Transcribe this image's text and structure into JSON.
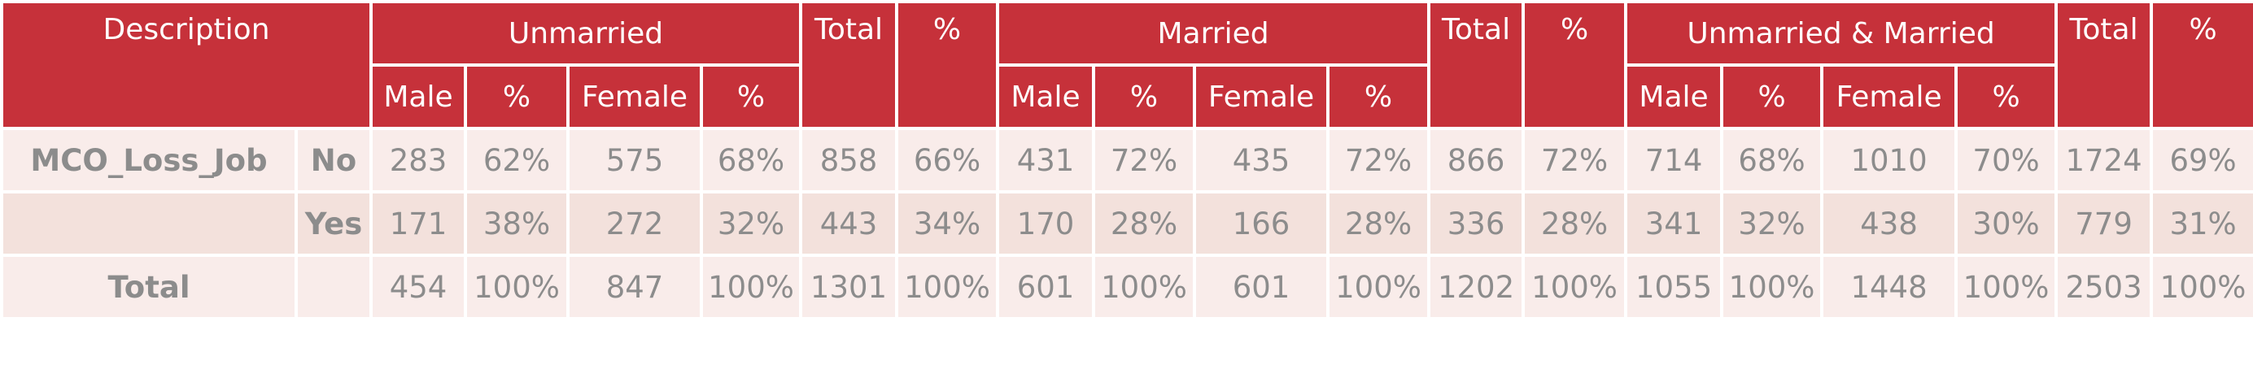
{
  "header": {
    "row1": [
      "Description",
      "Unmarried",
      "Total",
      "%",
      "Married",
      "Total",
      "%",
      "Unmarried & Married",
      "Total",
      "%"
    ],
    "row2": [
      "Male",
      "%",
      "Female",
      "%",
      "Male",
      "%",
      "Female",
      "%",
      "Male",
      "%",
      "Female",
      "%"
    ]
  },
  "rows": [
    {
      "label": "MCO_Loss_Job",
      "sub": "No",
      "cells": [
        "283",
        "62%",
        "575",
        "68%",
        "858",
        "66%",
        "431",
        "72%",
        "435",
        "72%",
        "866",
        "72%",
        "714",
        "68%",
        "1010",
        "70%",
        "1724",
        "69%"
      ]
    },
    {
      "sub": "Yes",
      "cells": [
        "171",
        "38%",
        "272",
        "32%",
        "443",
        "34%",
        "170",
        "28%",
        "166",
        "28%",
        "336",
        "28%",
        "341",
        "32%",
        "438",
        "30%",
        "779",
        "31%"
      ]
    },
    {
      "label": "Total",
      "cells": [
        "454",
        "100%",
        "847",
        "100%",
        "1301",
        "100%",
        "601",
        "100%",
        "601",
        "100%",
        "1202",
        "100%",
        "1055",
        "100%",
        "1448",
        "100%",
        "2503",
        "100%"
      ]
    }
  ]
}
